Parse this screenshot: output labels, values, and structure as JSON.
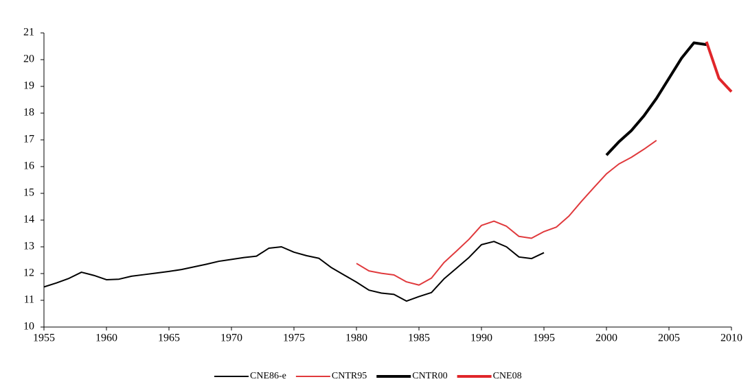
{
  "chart_data": {
    "type": "line",
    "x": [
      1955,
      1956,
      1957,
      1958,
      1959,
      1960,
      1961,
      1962,
      1963,
      1964,
      1965,
      1966,
      1967,
      1968,
      1969,
      1970,
      1971,
      1972,
      1973,
      1974,
      1975,
      1976,
      1977,
      1978,
      1979,
      1980,
      1981,
      1982,
      1983,
      1984,
      1985,
      1986,
      1987,
      1988,
      1989,
      1990,
      1991,
      1992,
      1993,
      1994,
      1995,
      1996,
      1997,
      1998,
      1999,
      2000,
      2001,
      2002,
      2003,
      2004,
      2005,
      2006,
      2007,
      2008,
      2009,
      2010
    ],
    "series": [
      {
        "name": "CNE86-e",
        "color": "#000000",
        "width": 2,
        "values": [
          11.5,
          11.65,
          11.82,
          12.05,
          11.93,
          11.77,
          11.79,
          11.9,
          11.96,
          12.02,
          12.08,
          12.15,
          12.25,
          12.35,
          12.46,
          12.53,
          12.6,
          12.65,
          12.95,
          13.0,
          12.8,
          12.67,
          12.57,
          12.22,
          11.95,
          11.68,
          11.38,
          11.27,
          11.22,
          10.97,
          11.14,
          11.29,
          11.8,
          12.2,
          12.6,
          13.08,
          13.2,
          13.0,
          12.62,
          12.56,
          12.78,
          null,
          null,
          null,
          null,
          null,
          null,
          null,
          null,
          null,
          null,
          null,
          null,
          null,
          null,
          null
        ]
      },
      {
        "name": "CNTR95",
        "color": "#e0393c",
        "width": 2,
        "values": [
          null,
          null,
          null,
          null,
          null,
          null,
          null,
          null,
          null,
          null,
          null,
          null,
          null,
          null,
          null,
          null,
          null,
          null,
          null,
          null,
          null,
          null,
          null,
          null,
          null,
          12.38,
          12.1,
          12.01,
          11.95,
          11.69,
          11.57,
          11.83,
          12.41,
          12.84,
          13.28,
          13.8,
          13.96,
          13.77,
          13.39,
          13.32,
          13.57,
          13.74,
          14.15,
          14.7,
          15.22,
          15.73,
          16.1,
          16.35,
          16.65,
          16.98,
          null,
          null,
          null,
          null,
          null,
          null
        ]
      },
      {
        "name": "CNTR00",
        "color": "#000000",
        "width": 4,
        "values": [
          null,
          null,
          null,
          null,
          null,
          null,
          null,
          null,
          null,
          null,
          null,
          null,
          null,
          null,
          null,
          null,
          null,
          null,
          null,
          null,
          null,
          null,
          null,
          null,
          null,
          null,
          null,
          null,
          null,
          null,
          null,
          null,
          null,
          null,
          null,
          null,
          null,
          null,
          null,
          null,
          null,
          null,
          null,
          null,
          null,
          16.43,
          16.93,
          17.35,
          17.9,
          18.55,
          19.3,
          20.05,
          20.63,
          20.56,
          null,
          null
        ]
      },
      {
        "name": "CNE08",
        "color": "#e0262a",
        "width": 4,
        "values": [
          null,
          null,
          null,
          null,
          null,
          null,
          null,
          null,
          null,
          null,
          null,
          null,
          null,
          null,
          null,
          null,
          null,
          null,
          null,
          null,
          null,
          null,
          null,
          null,
          null,
          null,
          null,
          null,
          null,
          null,
          null,
          null,
          null,
          null,
          null,
          null,
          null,
          null,
          null,
          null,
          null,
          null,
          null,
          null,
          null,
          null,
          null,
          null,
          null,
          null,
          null,
          null,
          null,
          20.67,
          19.3,
          18.8
        ]
      }
    ],
    "xlim": [
      1955,
      2010
    ],
    "xticks": [
      1955,
      1960,
      1965,
      1970,
      1975,
      1980,
      1985,
      1990,
      1995,
      2000,
      2005,
      2010
    ],
    "ylim": [
      10,
      21
    ],
    "yticks": [
      10,
      11,
      12,
      13,
      14,
      15,
      16,
      17,
      18,
      19,
      20,
      21
    ],
    "legend": "bottom"
  }
}
